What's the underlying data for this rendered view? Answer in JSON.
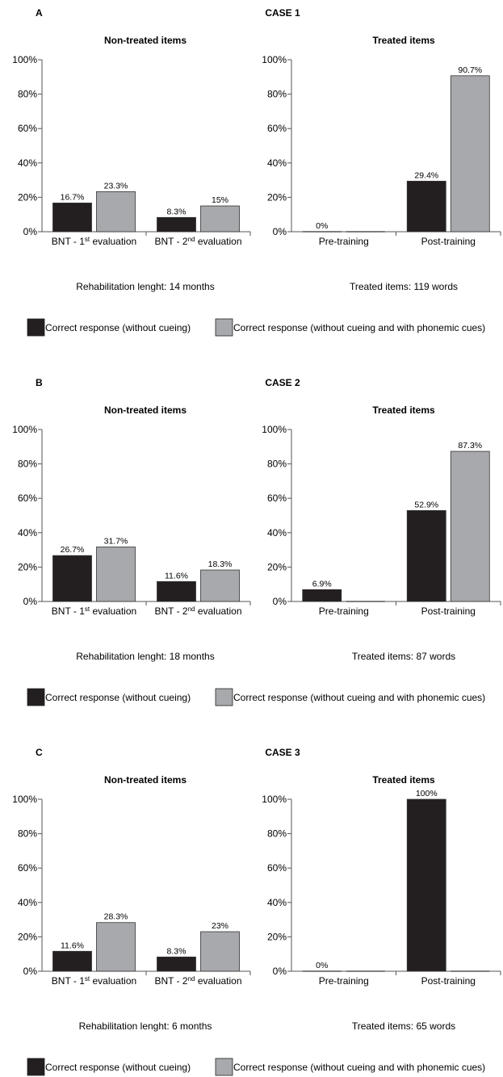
{
  "legend": {
    "dark_label": "Correct response (without cueing)",
    "light_label": "Correct response (without cueing and with phonemic cues)",
    "dark_color": "#231f20",
    "light_color": "#a7a9ac"
  },
  "chart_data": [
    {
      "panel": "A",
      "case_title": "CASE 1",
      "type": "bar",
      "ylim": [
        0,
        100
      ],
      "yticks": [
        "0%",
        "20%",
        "40%",
        "60%",
        "80%",
        "100%"
      ],
      "charts": [
        {
          "title": "Non-treated items",
          "categories": [
            {
              "base": "BNT - 1",
              "sup": "st",
              "rest": " evaluation"
            },
            {
              "base": "BNT - 2",
              "sup": "nd",
              "rest": " evaluation"
            }
          ],
          "series": [
            {
              "values": [
                16.7,
                8.3
              ],
              "labels": [
                "16.7%",
                "8.3%"
              ]
            },
            {
              "values": [
                23.3,
                15
              ],
              "labels": [
                "23.3%",
                "15%"
              ]
            }
          ],
          "note": "Rehabilitation lenght: 14 months"
        },
        {
          "title": "Treated items",
          "categories": [
            {
              "base": "Pre-training",
              "sup": "",
              "rest": ""
            },
            {
              "base": "Post-training",
              "sup": "",
              "rest": ""
            }
          ],
          "series": [
            {
              "values": [
                0,
                29.4
              ],
              "labels": [
                "0%",
                "29.4%"
              ]
            },
            {
              "values": [
                0,
                90.7
              ],
              "labels": [
                null,
                "90.7%"
              ]
            }
          ],
          "note": "Treated items: 119 words"
        }
      ]
    },
    {
      "panel": "B",
      "case_title": "CASE 2",
      "type": "bar",
      "ylim": [
        0,
        100
      ],
      "yticks": [
        "0%",
        "20%",
        "40%",
        "60%",
        "80%",
        "100%"
      ],
      "charts": [
        {
          "title": "Non-treated items",
          "categories": [
            {
              "base": "BNT - 1",
              "sup": "st",
              "rest": " evaluation"
            },
            {
              "base": "BNT - 2",
              "sup": "nd",
              "rest": " evaluation"
            }
          ],
          "series": [
            {
              "values": [
                26.7,
                11.6
              ],
              "labels": [
                "26.7%",
                "11.6%"
              ]
            },
            {
              "values": [
                31.7,
                18.3
              ],
              "labels": [
                "31.7%",
                "18.3%"
              ]
            }
          ],
          "note": "Rehabilitation lenght: 18 months"
        },
        {
          "title": "Treated items",
          "categories": [
            {
              "base": "Pre-training",
              "sup": "",
              "rest": ""
            },
            {
              "base": "Post-training",
              "sup": "",
              "rest": ""
            }
          ],
          "series": [
            {
              "values": [
                6.9,
                52.9
              ],
              "labels": [
                "6.9%",
                "52.9%"
              ]
            },
            {
              "values": [
                0,
                87.3
              ],
              "labels": [
                null,
                "87.3%"
              ]
            }
          ],
          "note": "Treated items: 87 words"
        }
      ]
    },
    {
      "panel": "C",
      "case_title": "CASE 3",
      "type": "bar",
      "ylim": [
        0,
        100
      ],
      "yticks": [
        "0%",
        "20%",
        "40%",
        "60%",
        "80%",
        "100%"
      ],
      "charts": [
        {
          "title": "Non-treated items",
          "categories": [
            {
              "base": "BNT - 1",
              "sup": "st",
              "rest": " evaluation"
            },
            {
              "base": "BNT - 2",
              "sup": "nd",
              "rest": " evaluation"
            }
          ],
          "series": [
            {
              "values": [
                11.6,
                8.3
              ],
              "labels": [
                "11.6%",
                "8.3%"
              ]
            },
            {
              "values": [
                28.3,
                23
              ],
              "labels": [
                "28.3%",
                "23%"
              ]
            }
          ],
          "note": "Rehabilitation lenght: 6 months"
        },
        {
          "title": "Treated items",
          "categories": [
            {
              "base": "Pre-training",
              "sup": "",
              "rest": ""
            },
            {
              "base": "Post-training",
              "sup": "",
              "rest": ""
            }
          ],
          "series": [
            {
              "values": [
                0,
                100
              ],
              "labels": [
                "0%",
                "100%"
              ]
            },
            {
              "values": [
                0,
                0
              ],
              "labels": [
                null,
                null
              ]
            }
          ],
          "note": "Treated items: 65 words"
        }
      ]
    }
  ]
}
